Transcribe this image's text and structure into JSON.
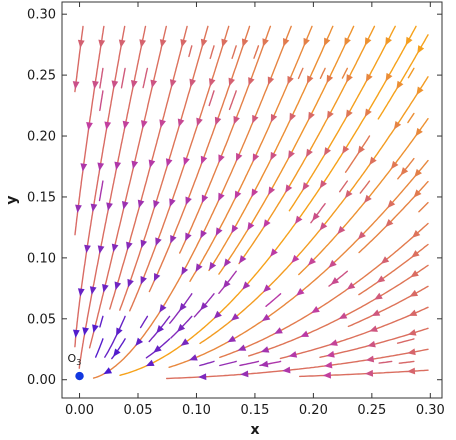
{
  "chart_data": {
    "type": "stream",
    "title": "",
    "xlabel": "x",
    "ylabel": "y",
    "xlim": [
      -0.015,
      0.31
    ],
    "ylim": [
      -0.015,
      0.31
    ],
    "xticks": [
      "0.00",
      "0.05",
      "0.10",
      "0.15",
      "0.20",
      "0.25",
      "0.30"
    ],
    "yticks": [
      "0.00",
      "0.05",
      "0.10",
      "0.15",
      "0.20",
      "0.25",
      "0.30"
    ],
    "grid": false,
    "frame": true,
    "colormap": [
      "#3b15d6",
      "#c03ca3",
      "#f6a21a"
    ],
    "attractor": {
      "label": "O",
      "subscript": "3",
      "x": 0.0,
      "y": 0.003,
      "color": "#1238e0"
    }
  }
}
